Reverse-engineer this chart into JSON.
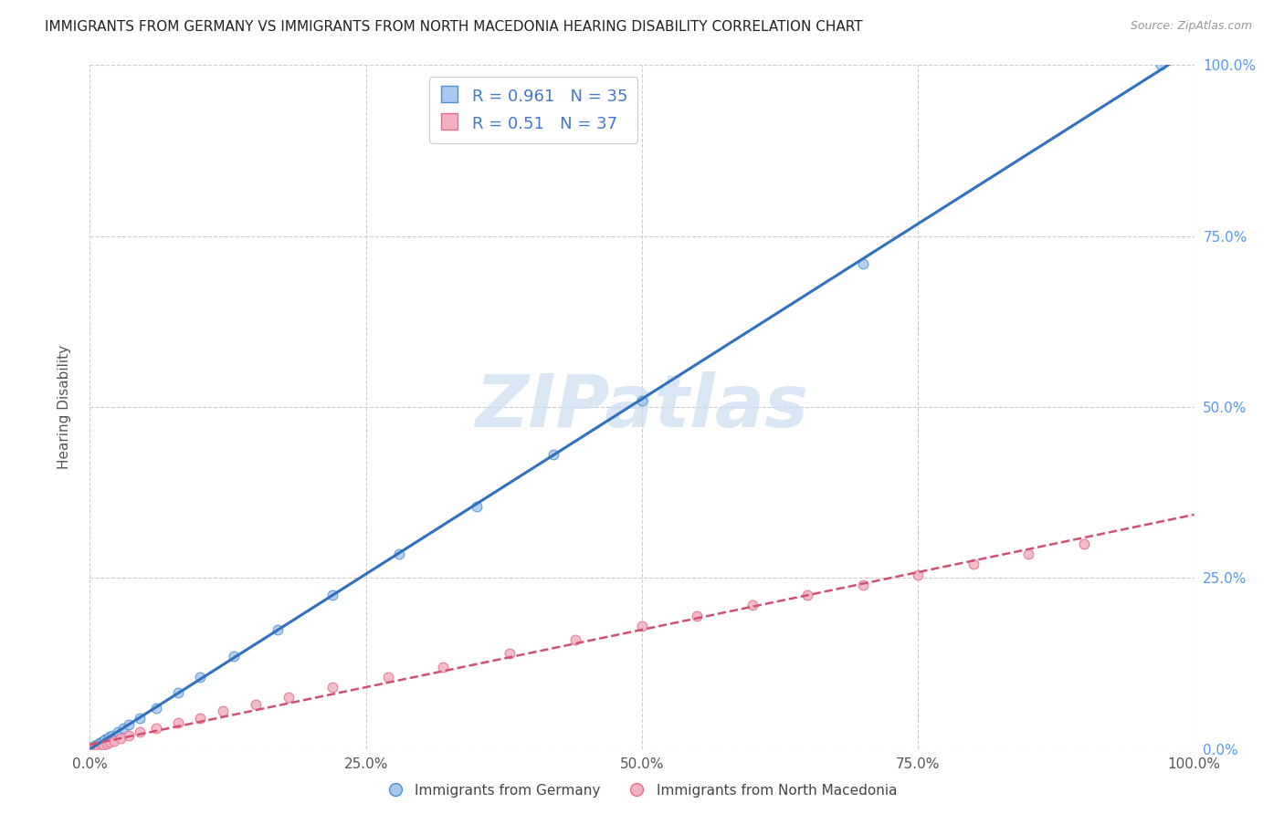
{
  "title": "IMMIGRANTS FROM GERMANY VS IMMIGRANTS FROM NORTH MACEDONIA HEARING DISABILITY CORRELATION CHART",
  "source": "Source: ZipAtlas.com",
  "ylabel": "Hearing Disability",
  "legend_label1": "Immigrants from Germany",
  "legend_label2": "Immigrants from North Macedonia",
  "R1": 0.961,
  "N1": 35,
  "R2": 0.51,
  "N2": 37,
  "color_blue_fill": "#A8C8F0",
  "color_blue_edge": "#5090D0",
  "color_blue_line": "#3070C0",
  "color_pink_fill": "#F4B0C0",
  "color_pink_edge": "#E07090",
  "color_pink_line": "#D05070",
  "color_grid": "#CCCCCC",
  "color_right_axis": "#5599EE",
  "watermark_color": "#C8DDEF",
  "germany_x": [
    0.05,
    0.1,
    0.15,
    0.2,
    0.25,
    0.3,
    0.35,
    0.4,
    0.5,
    0.6,
    0.7,
    0.8,
    0.9,
    1.0,
    1.2,
    1.4,
    1.6,
    1.8,
    2.0,
    2.5,
    3.0,
    3.5,
    4.5,
    6.0,
    8.0,
    10.0,
    13.0,
    17.0,
    22.0,
    28.0,
    35.0,
    42.0,
    50.0,
    70.0,
    97.0
  ],
  "germany_y": [
    0.05,
    0.08,
    0.12,
    0.18,
    0.22,
    0.28,
    0.32,
    0.38,
    0.48,
    0.58,
    0.68,
    0.78,
    0.9,
    1.0,
    1.2,
    1.4,
    1.6,
    1.8,
    2.0,
    2.5,
    3.0,
    3.6,
    4.5,
    6.0,
    8.2,
    10.5,
    13.5,
    17.5,
    22.5,
    28.5,
    35.5,
    43.0,
    51.0,
    71.0,
    100.0
  ],
  "north_macedonia_x": [
    0.05,
    0.1,
    0.15,
    0.2,
    0.3,
    0.4,
    0.5,
    0.6,
    0.8,
    1.0,
    1.2,
    1.5,
    1.8,
    2.2,
    2.8,
    3.5,
    4.5,
    6.0,
    8.0,
    10.0,
    12.0,
    15.0,
    18.0,
    22.0,
    27.0,
    32.0,
    38.0,
    44.0,
    50.0,
    55.0,
    60.0,
    65.0,
    70.0,
    75.0,
    80.0,
    85.0,
    90.0
  ],
  "north_macedonia_y": [
    0.02,
    0.05,
    0.08,
    0.12,
    0.18,
    0.22,
    0.28,
    0.32,
    0.4,
    0.5,
    0.6,
    0.8,
    1.0,
    1.2,
    1.5,
    2.0,
    2.5,
    3.0,
    3.8,
    4.5,
    5.5,
    6.5,
    7.5,
    9.0,
    10.5,
    12.0,
    14.0,
    16.0,
    18.0,
    19.5,
    21.0,
    22.5,
    24.0,
    25.5,
    27.0,
    28.5,
    30.0
  ],
  "xlim": [
    0,
    100
  ],
  "ylim": [
    0,
    100
  ],
  "xticks": [
    0,
    25,
    50,
    75,
    100
  ],
  "yticks": [
    0,
    25,
    50,
    75,
    100
  ],
  "xtick_labels": [
    "0.0%",
    "25.0%",
    "50.0%",
    "75.0%",
    "100.0%"
  ],
  "ytick_labels": [
    "0.0%",
    "25.0%",
    "50.0%",
    "75.0%",
    "100.0%"
  ]
}
